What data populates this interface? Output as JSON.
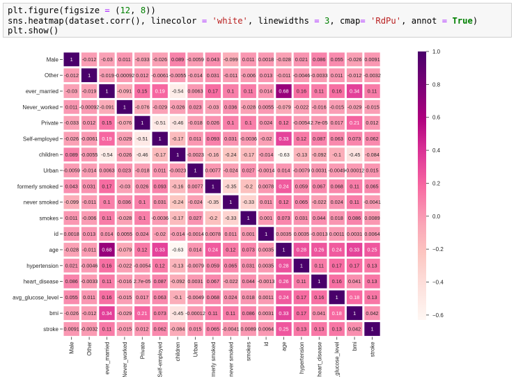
{
  "code_cell": {
    "lines": [
      [
        {
          "t": "plt.figure(figsize ",
          "c": ""
        },
        {
          "t": "=",
          "c": "op"
        },
        {
          "t": " (",
          "c": ""
        },
        {
          "t": "12",
          "c": "num"
        },
        {
          "t": ", ",
          "c": ""
        },
        {
          "t": "8",
          "c": "num"
        },
        {
          "t": "))",
          "c": ""
        }
      ],
      [
        {
          "t": "sns.heatmap(dataset.corr(), linecolor ",
          "c": ""
        },
        {
          "t": "=",
          "c": "op"
        },
        {
          "t": " ",
          "c": ""
        },
        {
          "t": "'white'",
          "c": "str"
        },
        {
          "t": ", linewidths ",
          "c": ""
        },
        {
          "t": "=",
          "c": "op"
        },
        {
          "t": " ",
          "c": ""
        },
        {
          "t": "3",
          "c": "num"
        },
        {
          "t": ", cmap",
          "c": ""
        },
        {
          "t": "=",
          "c": "op"
        },
        {
          "t": " ",
          "c": ""
        },
        {
          "t": "'RdPu'",
          "c": "str"
        },
        {
          "t": ", annot ",
          "c": ""
        },
        {
          "t": "=",
          "c": "op"
        },
        {
          "t": " ",
          "c": ""
        },
        {
          "t": "True",
          "c": "kw"
        },
        {
          "t": ")",
          "c": ""
        }
      ],
      [
        {
          "t": "plt.show()",
          "c": ""
        }
      ]
    ]
  },
  "chart_data": {
    "type": "heatmap",
    "cmap": "RdPu",
    "linecolor": "#ffffff",
    "vmin": -0.63,
    "vmax": 1.0,
    "labels": [
      "Male",
      "Other",
      "ever_married",
      "Never_worked",
      "Private",
      "Self-employed",
      "children",
      "Urban",
      "formerly smoked",
      "never smoked",
      "smokes",
      "id",
      "age",
      "hypertension",
      "heart_disease",
      "avg_glucose_level",
      "bmi",
      "stroke"
    ],
    "annotations": [
      [
        "1",
        "-0.012",
        "-0.03",
        "0.011",
        "-0.033",
        "-0.026",
        "0.089",
        "-0.0059",
        "0.043",
        "-0.099",
        "0.011",
        "0.0018",
        "-0.028",
        "0.021",
        "0.086",
        "0.055",
        "-0.026",
        "0.0091"
      ],
      [
        "-0.012",
        "1",
        "-0.019",
        "-0.00092",
        "0.012",
        "-0.0061",
        "-0.0055",
        "-0.014",
        "0.031",
        "-0.011",
        "-0.006",
        "0.013",
        "-0.011",
        "-0.0046",
        "-0.0033",
        "0.011",
        "-0.012",
        "-0.0032"
      ],
      [
        "-0.03",
        "-0.019",
        "1",
        "-0.091",
        "0.15",
        "0.19",
        "-0.54",
        "0.0063",
        "0.17",
        "0.1",
        "0.11",
        "0.014",
        "0.68",
        "0.16",
        "0.11",
        "0.16",
        "0.34",
        "0.11"
      ],
      [
        "0.011",
        "-0.00092",
        "-0.091",
        "1",
        "-0.076",
        "-0.029",
        "-0.026",
        "0.023",
        "-0.03",
        "0.036",
        "-0.028",
        "0.0055",
        "-0.079",
        "-0.022",
        "-0.016",
        "-0.015",
        "-0.029",
        "-0.015"
      ],
      [
        "-0.033",
        "0.012",
        "0.15",
        "-0.076",
        "1",
        "-0.51",
        "-0.46",
        "-0.018",
        "0.026",
        "0.1",
        "0.1",
        "0.024",
        "0.12",
        "-0.0054",
        "2.7e-05",
        "0.017",
        "0.21",
        "0.012"
      ],
      [
        "-0.026",
        "-0.0061",
        "0.19",
        "-0.029",
        "-0.51",
        "1",
        "-0.17",
        "0.011",
        "0.093",
        "0.031",
        "-0.0036",
        "-0.02",
        "0.33",
        "0.12",
        "0.087",
        "0.063",
        "0.073",
        "0.062"
      ],
      [
        "0.089",
        "-0.0055",
        "-0.54",
        "-0.026",
        "-0.46",
        "-0.17",
        "1",
        "-0.0023",
        "-0.16",
        "-0.24",
        "-0.17",
        "-0.014",
        "-0.63",
        "-0.13",
        "-0.092",
        "-0.1",
        "-0.45",
        "-0.084"
      ],
      [
        "-0.0059",
        "-0.014",
        "0.0063",
        "0.023",
        "-0.018",
        "0.011",
        "-0.0023",
        "1",
        "0.0077",
        "-0.024",
        "0.027",
        "-0.0014",
        "0.014",
        "-0.0079",
        "0.0031",
        "-0.0049",
        "-0.00012",
        "0.015"
      ],
      [
        "0.043",
        "0.031",
        "0.17",
        "-0.03",
        "0.026",
        "0.093",
        "-0.16",
        "0.0077",
        "1",
        "-0.35",
        "-0.2",
        "0.0078",
        "0.24",
        "0.059",
        "0.067",
        "0.068",
        "0.11",
        "0.065"
      ],
      [
        "-0.099",
        "-0.011",
        "0.1",
        "0.036",
        "0.1",
        "0.031",
        "-0.24",
        "-0.024",
        "-0.35",
        "1",
        "-0.33",
        "0.011",
        "0.12",
        "0.065",
        "-0.022",
        "0.024",
        "0.11",
        "-0.0041"
      ],
      [
        "0.011",
        "-0.006",
        "0.11",
        "-0.028",
        "0.1",
        "-0.0036",
        "-0.17",
        "0.027",
        "-0.2",
        "-0.33",
        "1",
        "0.001",
        "0.073",
        "0.031",
        "0.044",
        "0.018",
        "0.086",
        "0.0089"
      ],
      [
        "0.0018",
        "0.013",
        "0.014",
        "0.0055",
        "0.024",
        "-0.02",
        "-0.014",
        "-0.0014",
        "0.0078",
        "0.011",
        "0.001",
        "1",
        "0.0035",
        "0.0035",
        "-0.0013",
        "0.0011",
        "0.0031",
        "0.0064"
      ],
      [
        "-0.028",
        "-0.011",
        "0.68",
        "-0.079",
        "0.12",
        "0.33",
        "-0.63",
        "0.014",
        "0.24",
        "0.12",
        "0.073",
        "0.0035",
        "1",
        "0.28",
        "0.26",
        "0.24",
        "0.33",
        "0.25"
      ],
      [
        "0.021",
        "-0.0046",
        "0.16",
        "-0.022",
        "-0.0054",
        "0.12",
        "-0.13",
        "-0.0079",
        "0.059",
        "0.065",
        "0.031",
        "0.0035",
        "0.28",
        "1",
        "0.11",
        "0.17",
        "0.17",
        "0.13"
      ],
      [
        "0.086",
        "-0.0033",
        "0.11",
        "-0.016",
        "2.7e-05",
        "0.087",
        "-0.092",
        "0.0031",
        "0.067",
        "-0.022",
        "0.044",
        "-0.0013",
        "0.26",
        "0.11",
        "1",
        "0.16",
        "0.041",
        "0.13"
      ],
      [
        "0.055",
        "0.011",
        "0.16",
        "-0.015",
        "0.017",
        "0.063",
        "-0.1",
        "-0.0049",
        "0.068",
        "0.024",
        "0.018",
        "0.0011",
        "0.24",
        "0.17",
        "0.16",
        "1",
        "0.18",
        "0.13"
      ],
      [
        "-0.026",
        "-0.012",
        "0.34",
        "-0.029",
        "0.21",
        "0.073",
        "-0.45",
        "-0.00012",
        "0.11",
        "0.11",
        "0.086",
        "0.0031",
        "0.33",
        "0.17",
        "0.041",
        "0.18",
        "1",
        "0.042"
      ],
      [
        "0.0091",
        "-0.0032",
        "0.11",
        "-0.015",
        "0.012",
        "0.062",
        "-0.084",
        "0.015",
        "0.065",
        "-0.0041",
        "0.0089",
        "0.0064",
        "0.25",
        "0.13",
        "0.13",
        "0.13",
        "0.042",
        "1"
      ]
    ],
    "colorbar": {
      "ticks": [
        1.0,
        0.8,
        0.6,
        0.4,
        0.2,
        0.0,
        -0.2,
        -0.4,
        -0.6
      ],
      "tick_labels": [
        "1.0",
        "0.8",
        "0.6",
        "0.4",
        "0.2",
        "0.0",
        "−0.2",
        "−0.4",
        "−0.6"
      ]
    },
    "title": "",
    "xlabel": "",
    "ylabel": "",
    "grid": false,
    "legend": "colorbar-right"
  }
}
